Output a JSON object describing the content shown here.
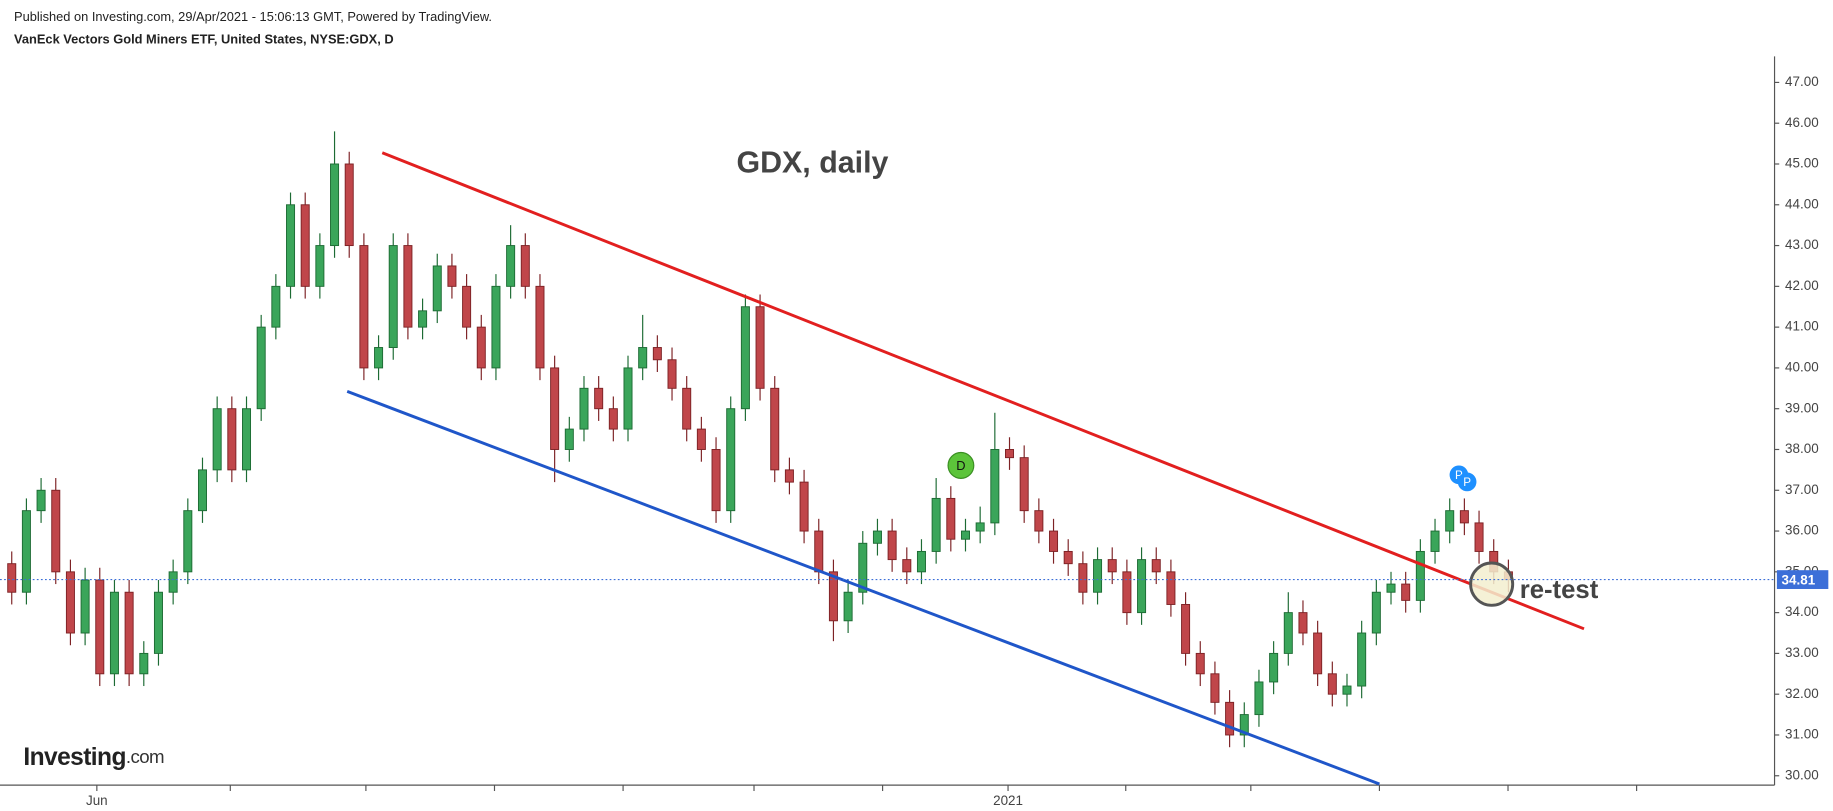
{
  "header": {
    "published": "Published on Investing.com, 29/Apr/2021 - 15:06:13 GMT, Powered by TradingView.",
    "instrument": "VanEck Vectors Gold Miners ETF, United States, NYSE:GDX, D"
  },
  "logo": [
    "Investing",
    ".com"
  ],
  "chart_data": {
    "type": "candlestick",
    "title": "GDX, daily",
    "annotations": [
      "re-test",
      "D",
      "P",
      "P"
    ],
    "up_color": "#3aa55a",
    "down_color": "#c0464a",
    "open": [
      35.2,
      34.5,
      36.5,
      37,
      35,
      33.5,
      34.8,
      32.5,
      34.5,
      32.5,
      33,
      34.5,
      35,
      36.5,
      37.5,
      39,
      37.5,
      39,
      41,
      42,
      44,
      42,
      43,
      45,
      43,
      40,
      40.5,
      43,
      41,
      41.4,
      42.5,
      42,
      41,
      40,
      42,
      43,
      42,
      40,
      38,
      38.5,
      39.5,
      39,
      38.5,
      40,
      40.5,
      40.2,
      39.5,
      38.5,
      38,
      36.5,
      39,
      41.5,
      39.5,
      37.5,
      37.2,
      36,
      35,
      33.8,
      34.5,
      35.7,
      36,
      35.3,
      35,
      35.5,
      36.8,
      35.8,
      36,
      36.2,
      38,
      37.8,
      36.5,
      36,
      35.5,
      35.2,
      34.5,
      35.3,
      35,
      34,
      35.3,
      35,
      34.2,
      33,
      32.5,
      31.8,
      31,
      31.5,
      32.3,
      33,
      34,
      33.5,
      32.5,
      32,
      32.2,
      33.5,
      34.5,
      34.7,
      34.3,
      35.5,
      36,
      36.5,
      36.2,
      35.5,
      35
    ],
    "high": [
      35.5,
      36.8,
      37.3,
      37.3,
      35.3,
      35.1,
      35.1,
      34.8,
      34.8,
      33.3,
      34.8,
      35.3,
      36.8,
      37.8,
      39.3,
      39.3,
      39.3,
      41.3,
      42.3,
      44.3,
      44.3,
      43.3,
      45.8,
      45.3,
      43.3,
      40.8,
      43.3,
      43.3,
      41.7,
      42.8,
      42.8,
      42.3,
      41.3,
      42.3,
      43.5,
      43.3,
      42.3,
      40.3,
      38.8,
      39.8,
      39.8,
      39.3,
      40.3,
      41.3,
      40.8,
      40.5,
      39.8,
      38.8,
      38.3,
      39.3,
      41.8,
      41.8,
      39.8,
      37.8,
      37.5,
      36.3,
      35.3,
      34.8,
      36,
      36.3,
      36.3,
      35.6,
      35.8,
      37.3,
      37.1,
      36.3,
      36.6,
      38.9,
      38.3,
      38.1,
      36.8,
      36.3,
      35.8,
      35.5,
      35.6,
      35.6,
      35.3,
      35.6,
      35.6,
      35.3,
      34.5,
      33.3,
      32.8,
      32.1,
      31.8,
      32.6,
      33.3,
      34.5,
      34.3,
      33.8,
      32.8,
      32.5,
      33.8,
      34.8,
      35,
      35,
      35.8,
      36.3,
      36.8,
      36.8,
      36.5,
      35.8,
      35.3
    ],
    "low": [
      34.2,
      34.2,
      36.2,
      34.7,
      33.2,
      33.2,
      32.2,
      32.2,
      32.2,
      32.2,
      32.7,
      34.2,
      34.7,
      36.2,
      37.2,
      37.2,
      37.2,
      38.7,
      40.7,
      41.7,
      41.7,
      41.7,
      42.7,
      42.7,
      39.7,
      39.7,
      40.2,
      40.7,
      40.7,
      41.1,
      41.7,
      40.7,
      39.7,
      39.7,
      41.7,
      41.7,
      39.7,
      37.2,
      37.7,
      38.2,
      38.7,
      38.2,
      38.2,
      39.7,
      39.9,
      39.2,
      38.2,
      37.7,
      36.2,
      36.2,
      38.7,
      39.2,
      37.2,
      36.9,
      35.7,
      34.7,
      33.3,
      33.5,
      34.2,
      35.4,
      35,
      34.7,
      34.7,
      35.2,
      35.5,
      35.5,
      35.7,
      35.9,
      37.5,
      36.2,
      35.7,
      35.2,
      34.9,
      34.2,
      34.2,
      34.7,
      33.7,
      33.7,
      34.7,
      33.9,
      32.7,
      32.2,
      31.5,
      30.7,
      30.7,
      31.2,
      32,
      32.7,
      33.2,
      32.2,
      31.7,
      31.7,
      31.9,
      33.2,
      34.2,
      34,
      34,
      35.2,
      35.7,
      35.9,
      35.2,
      34.7,
      34.5
    ],
    "close": [
      34.5,
      36.5,
      37,
      35,
      33.5,
      34.8,
      32.5,
      34.5,
      32.5,
      33,
      34.5,
      35,
      36.5,
      37.5,
      39,
      37.5,
      39,
      41,
      42,
      44,
      42,
      43,
      45,
      43,
      40,
      40.5,
      43,
      41,
      41.4,
      42.5,
      42,
      41,
      40,
      42,
      43,
      42,
      40,
      38,
      38.5,
      39.5,
      39,
      38.5,
      40,
      40.5,
      40.2,
      39.5,
      38.5,
      38,
      36.5,
      39,
      41.5,
      39.5,
      37.5,
      37.2,
      36,
      35,
      33.8,
      34.5,
      35.7,
      36,
      35.3,
      35,
      35.5,
      36.8,
      35.8,
      36,
      36.2,
      38,
      37.8,
      36.5,
      36,
      35.5,
      35.2,
      34.5,
      35.3,
      35,
      34,
      35.3,
      35,
      34.2,
      33,
      32.5,
      31.8,
      31,
      31.5,
      32.3,
      33,
      34,
      33.5,
      32.5,
      32,
      32.2,
      33.5,
      34.5,
      34.7,
      34.3,
      35.5,
      36,
      36.5,
      36.2,
      35.5,
      35,
      34.81
    ],
    "xlim": [
      -0.8,
      119.9
    ],
    "xticks": [
      {
        "value": 5.8,
        "label": "Jun"
      },
      {
        "value": 67.9,
        "label": "2021"
      }
    ],
    "ylim": [
      29.77,
      47.58
    ],
    "yticks": [
      {
        "value": 30,
        "label": "30.00"
      },
      {
        "value": 31,
        "label": "31.00"
      },
      {
        "value": 32,
        "label": "32.00"
      },
      {
        "value": 33,
        "label": "33.00"
      },
      {
        "value": 34,
        "label": "34.00"
      },
      {
        "value": 35,
        "label": "35.00"
      },
      {
        "value": 36,
        "label": "36.00"
      },
      {
        "value": 37,
        "label": "37.00"
      },
      {
        "value": 38,
        "label": "38.00"
      },
      {
        "value": 39,
        "label": "39.00"
      },
      {
        "value": 40,
        "label": "40.00"
      },
      {
        "value": 41,
        "label": "41.00"
      },
      {
        "value": 42,
        "label": "42.00"
      },
      {
        "value": 43,
        "label": "43.00"
      },
      {
        "value": 44,
        "label": "44.00"
      },
      {
        "value": 45,
        "label": "45.00"
      },
      {
        "value": 46,
        "label": "46.00"
      },
      {
        "value": 47,
        "label": "47.00"
      }
    ]
  }
}
